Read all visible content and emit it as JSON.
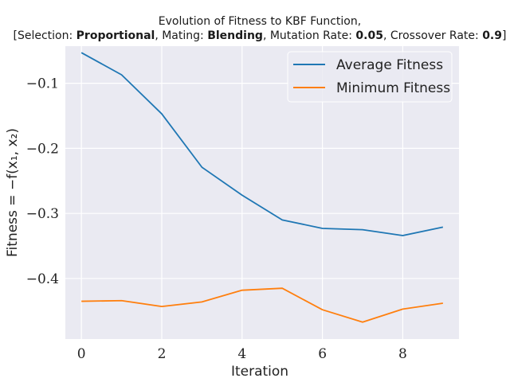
{
  "chart_data": {
    "type": "line",
    "title": "Evolution of Fitness to KBF Function,",
    "subtitle": {
      "p1": "[Selection: ",
      "selection": "Proportional",
      "p2": ", Mating: ",
      "mating": "Blending",
      "p3": ", Mutation Rate: ",
      "mutation_rate": "0.05",
      "p4": ", Crossover Rate: ",
      "crossover_rate": "0.9",
      "p5": "]"
    },
    "xlabel": "Iteration",
    "ylabel": "Fitness = −f(x₁, x₂)",
    "xlim": [
      -0.4,
      9.4
    ],
    "ylim": [
      -0.493,
      -0.043
    ],
    "xticks": [
      0,
      2,
      4,
      6,
      8
    ],
    "xtick_labels": [
      "0",
      "2",
      "4",
      "6",
      "8"
    ],
    "yticks": [
      -0.4,
      -0.3,
      -0.2,
      -0.1
    ],
    "ytick_labels": [
      "−0.4",
      "−0.3",
      "−0.2",
      "−0.1"
    ],
    "grid": true,
    "legend_position": "top-right",
    "x": [
      0,
      1,
      2,
      3,
      4,
      5,
      6,
      7,
      8,
      9
    ],
    "series": [
      {
        "name": "Average Fitness",
        "color": "#1f77b4",
        "values": [
          -0.053,
          -0.087,
          -0.147,
          -0.229,
          -0.272,
          -0.31,
          -0.323,
          -0.325,
          -0.334,
          -0.321
        ]
      },
      {
        "name": "Minimum Fitness",
        "color": "#ff7f0e",
        "values": [
          -0.435,
          -0.434,
          -0.443,
          -0.436,
          -0.418,
          -0.415,
          -0.448,
          -0.467,
          -0.447,
          -0.438
        ]
      }
    ]
  }
}
